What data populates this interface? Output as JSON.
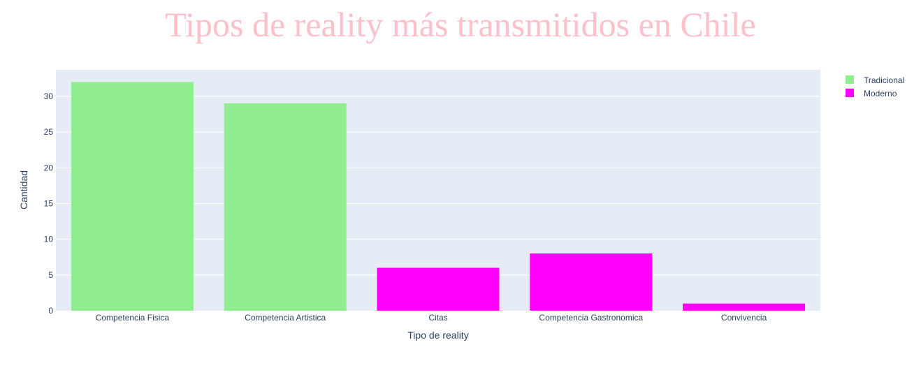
{
  "chart_data": {
    "type": "bar",
    "title": "Tipos de reality más transmitidos en Chile",
    "xlabel": "Tipo de reality",
    "ylabel": "Cantidad",
    "categories": [
      "Competencia Fisica",
      "Competencia Artistica",
      "Citas",
      "Competencia Gastronomica",
      "Convivencia"
    ],
    "series": [
      {
        "name": "Tradicional",
        "color": "#90ee90",
        "points": [
          {
            "category": "Competencia Fisica",
            "value": 32
          },
          {
            "category": "Competencia Artistica",
            "value": 29
          }
        ]
      },
      {
        "name": "Moderno",
        "color": "#ff00ff",
        "points": [
          {
            "category": "Citas",
            "value": 6
          },
          {
            "category": "Competencia Gastronomica",
            "value": 8
          },
          {
            "category": "Convivencia",
            "value": 1
          }
        ]
      }
    ],
    "ylim": [
      0,
      33.7
    ],
    "yticks": [
      0,
      5,
      10,
      15,
      20,
      25,
      30
    ],
    "grid": true,
    "legend_position": "top-right",
    "colors": {
      "title": "#ffc0cb",
      "plot_background": "#e5ecf6",
      "grid": "#ffffff",
      "text": "#2a3f5f"
    }
  }
}
